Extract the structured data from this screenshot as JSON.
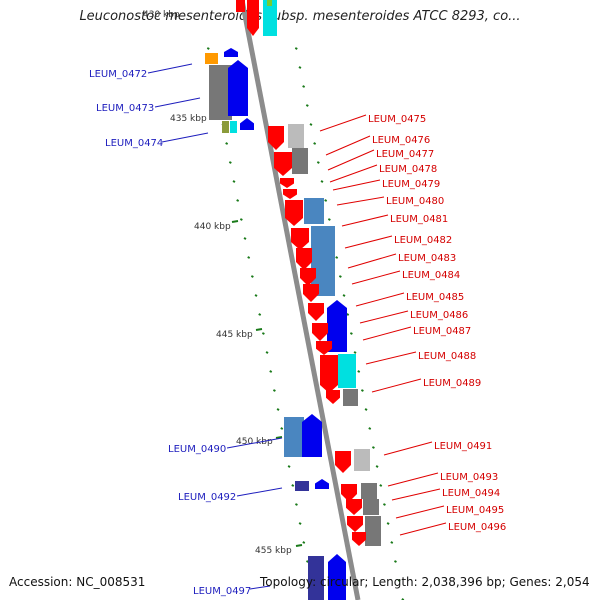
{
  "title": "Leuconostoc mesenteroides subsp. mesenteroides ATCC 8293, co...",
  "accession": "Accession: NC_008531",
  "topology_line": "Topology: circular; Length: 2,038,396 bp; Genes: 2,054",
  "scale_labels": [
    "430 kbp",
    "435 kbp",
    "440 kbp",
    "445 kbp",
    "450 kbp",
    "455 kbp"
  ],
  "left_genes": [
    {
      "label": "LEUM_0472",
      "color": "#1d1dbd"
    },
    {
      "label": "LEUM_0473",
      "color": "#1d1dbd"
    },
    {
      "label": "LEUM_0474",
      "color": "#1d1dbd"
    },
    {
      "label": "LEUM_0490",
      "color": "#1d1dbd"
    },
    {
      "label": "LEUM_0492",
      "color": "#1d1dbd"
    },
    {
      "label": "LEUM_0497",
      "color": "#1d1dbd"
    }
  ],
  "right_genes": [
    {
      "label": "LEUM_0475"
    },
    {
      "label": "LEUM_0476"
    },
    {
      "label": "LEUM_0477"
    },
    {
      "label": "LEUM_0478"
    },
    {
      "label": "LEUM_0479"
    },
    {
      "label": "LEUM_0480"
    },
    {
      "label": "LEUM_0481"
    },
    {
      "label": "LEUM_0482"
    },
    {
      "label": "LEUM_0483"
    },
    {
      "label": "LEUM_0484"
    },
    {
      "label": "LEUM_0485"
    },
    {
      "label": "LEUM_0486"
    },
    {
      "label": "LEUM_0487"
    },
    {
      "label": "LEUM_0488"
    },
    {
      "label": "LEUM_0489"
    },
    {
      "label": "LEUM_0491"
    },
    {
      "label": "LEUM_0493"
    },
    {
      "label": "LEUM_0494"
    },
    {
      "label": "LEUM_0495"
    },
    {
      "label": "LEUM_0496"
    }
  ],
  "colors": {
    "backbone": "#8c8c8c",
    "left_label": "#1d1dbd",
    "right_label": "#d40000",
    "left_leader": "#1d1dbd",
    "right_leader": "#e00000",
    "tick": "#1a7a1a",
    "red_gene": "#ff0000",
    "blue_gene": "#0000ee",
    "steel_gene": "#4a86c0",
    "gray_gene": "#777777",
    "cyan_gene": "#00e0e0",
    "orange_gene": "#ff9900"
  }
}
